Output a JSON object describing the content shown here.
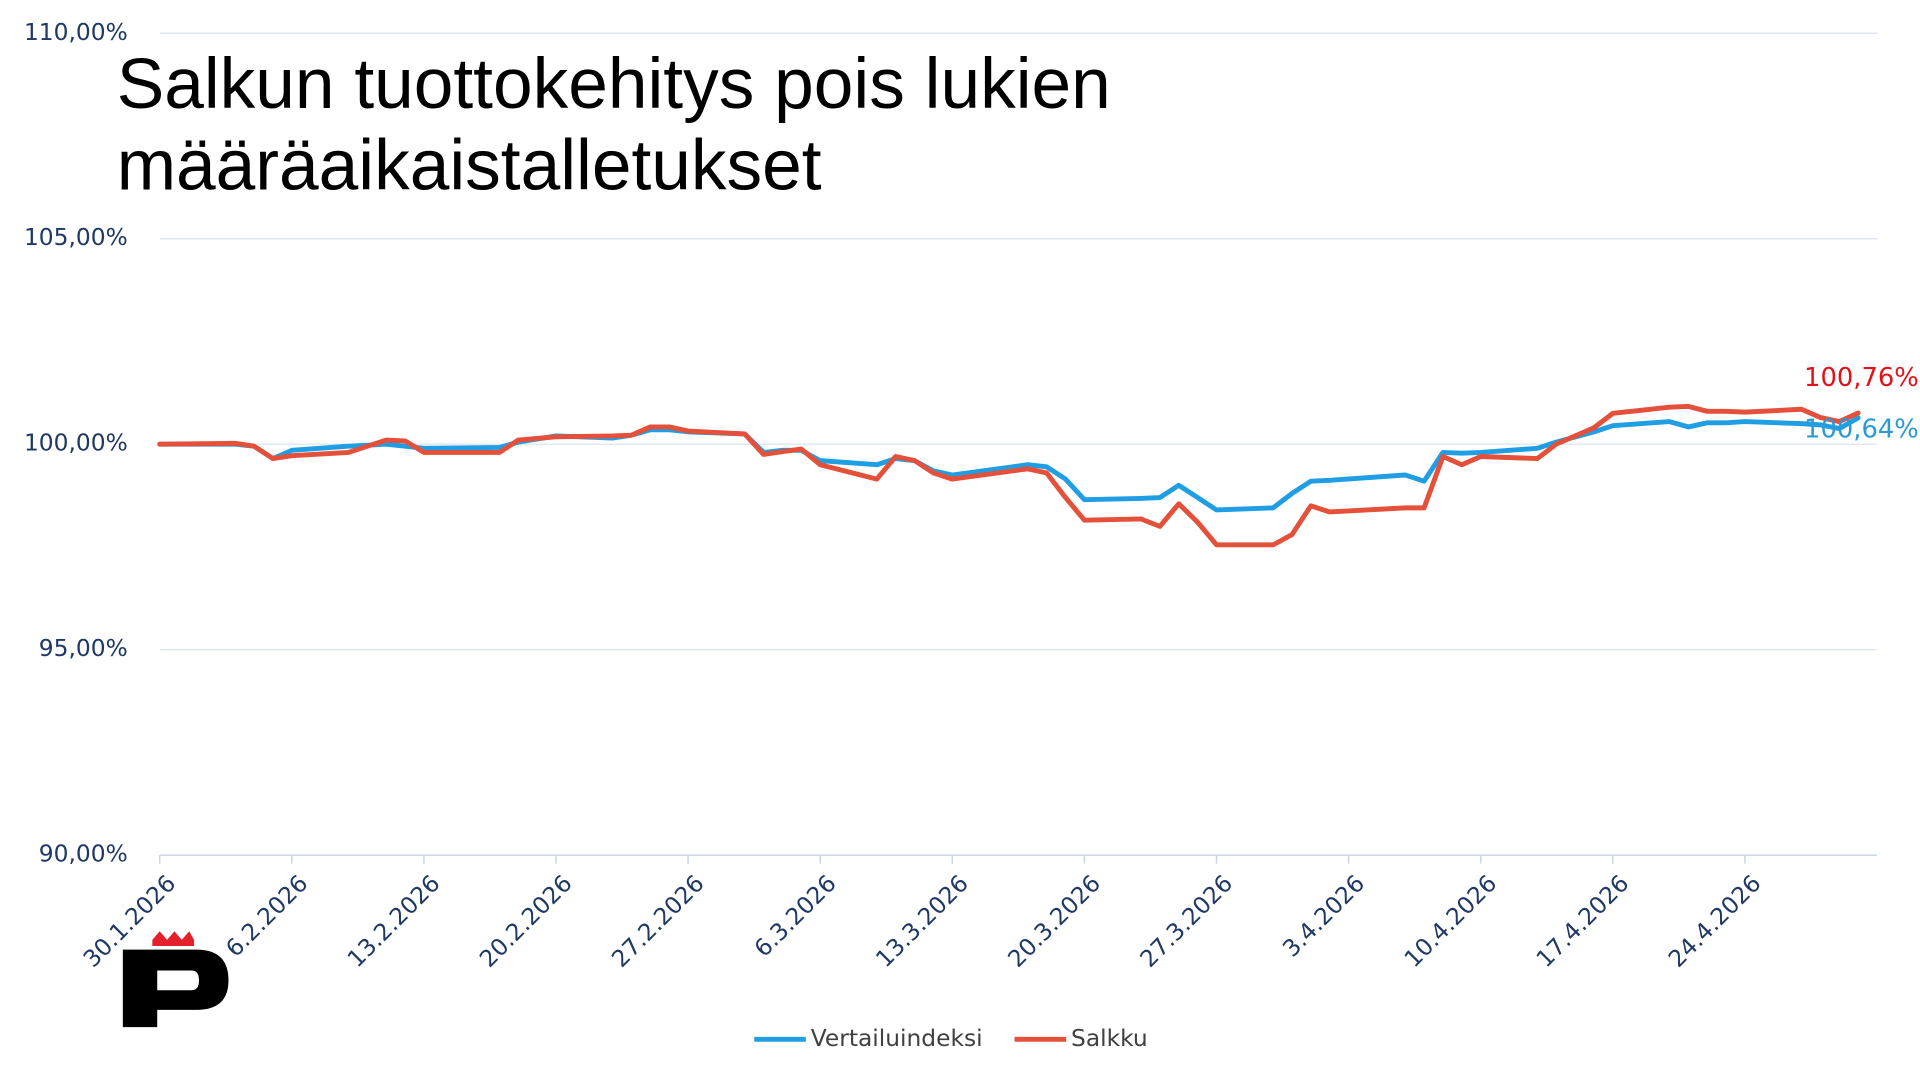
{
  "chart_data": {
    "type": "line",
    "title": "Salkun tuottokehitys pois lukien määräaikaistalletukset",
    "x": [
      "30.1.2026",
      "3.2.2026",
      "4.2.2026",
      "5.2.2026",
      "6.2.2026",
      "9.2.2026",
      "11.2.2026",
      "12.2.2026",
      "13.2.2026",
      "17.2.2026",
      "18.2.2026",
      "20.2.2026",
      "23.2.2026",
      "24.2.2026",
      "25.2.2026",
      "26.2.2026",
      "27.2.2026",
      "2.3.2026",
      "3.3.2026",
      "4.3.2026",
      "5.3.2026",
      "6.3.2026",
      "9.3.2026",
      "10.3.2026",
      "11.3.2026",
      "12.3.2026",
      "13.3.2026",
      "17.3.2026",
      "18.3.2026",
      "19.3.2026",
      "20.3.2026",
      "23.3.2026",
      "24.3.2026",
      "25.3.2026",
      "26.3.2026",
      "27.3.2026",
      "30.3.2026",
      "31.3.2026",
      "1.4.2026",
      "2.4.2026",
      "6.4.2026",
      "7.4.2026",
      "8.4.2026",
      "9.4.2026",
      "10.4.2026",
      "13.4.2026",
      "14.4.2026",
      "16.4.2026",
      "17.4.2026",
      "20.4.2026",
      "21.4.2026",
      "22.4.2026",
      "23.4.2026",
      "24.4.2026",
      "27.4.2026",
      "28.4.2026",
      "29.4.2026",
      "30.4.2026"
    ],
    "series": [
      {
        "name": "Vertailuindeksi",
        "color": "#1f9ee3",
        "values": [
          100.0,
          100.0,
          99.95,
          99.65,
          99.85,
          99.95,
          100.0,
          99.95,
          99.9,
          99.92,
          100.05,
          100.2,
          100.15,
          100.22,
          100.35,
          100.35,
          100.3,
          100.25,
          99.8,
          99.85,
          99.85,
          99.6,
          99.5,
          99.65,
          99.6,
          99.35,
          99.25,
          99.5,
          99.45,
          99.15,
          98.65,
          98.68,
          98.7,
          99.0,
          98.7,
          98.4,
          98.45,
          98.8,
          99.1,
          99.12,
          99.25,
          99.1,
          99.8,
          99.78,
          99.8,
          99.9,
          100.05,
          100.3,
          100.45,
          100.55,
          100.42,
          100.52,
          100.52,
          100.55,
          100.5,
          100.47,
          100.38,
          100.64
        ],
        "value_labels": [
          null,
          null,
          null,
          null,
          null,
          null,
          null,
          null,
          null,
          null,
          null,
          null,
          null,
          null,
          null,
          null,
          null,
          null,
          null,
          null,
          null,
          null,
          null,
          null,
          null,
          null,
          null,
          null,
          null,
          null,
          null,
          null,
          null,
          null,
          null,
          null,
          null,
          null,
          null,
          null,
          null,
          null,
          null,
          null,
          null,
          null,
          null,
          null,
          null,
          null,
          null,
          null,
          null,
          null,
          null,
          null,
          null,
          "100,64%"
        ],
        "label_color": "#2a9bd8"
      },
      {
        "name": "Salkku",
        "color": "#e4503a",
        "values": [
          100.0,
          100.02,
          99.95,
          99.65,
          99.72,
          99.8,
          100.1,
          100.08,
          99.8,
          99.8,
          100.1,
          100.18,
          100.2,
          100.22,
          100.42,
          100.42,
          100.32,
          100.25,
          99.75,
          99.82,
          99.88,
          99.5,
          99.15,
          99.7,
          99.6,
          99.3,
          99.15,
          99.4,
          99.3,
          98.7,
          98.15,
          98.18,
          98.0,
          98.55,
          98.1,
          97.55,
          97.55,
          97.8,
          98.5,
          98.35,
          98.45,
          98.45,
          99.7,
          99.5,
          99.7,
          99.65,
          100.0,
          100.4,
          100.75,
          100.9,
          100.92,
          100.8,
          100.8,
          100.78,
          100.85,
          100.65,
          100.55,
          100.76
        ],
        "value_labels": [
          null,
          null,
          null,
          null,
          null,
          null,
          null,
          null,
          null,
          null,
          null,
          null,
          null,
          null,
          null,
          null,
          null,
          null,
          null,
          null,
          null,
          null,
          null,
          null,
          null,
          null,
          null,
          null,
          null,
          null,
          null,
          null,
          null,
          null,
          null,
          null,
          null,
          null,
          null,
          null,
          null,
          null,
          null,
          null,
          null,
          null,
          null,
          null,
          null,
          null,
          null,
          null,
          null,
          null,
          null,
          null,
          null,
          "100,76%"
        ],
        "label_color": "#e0121b"
      }
    ],
    "xlim": [
      "30.1.2026",
      "1.5.2026"
    ],
    "xticks": [
      "30.1.2026",
      "6.2.2026",
      "13.2.2026",
      "20.2.2026",
      "27.2.2026",
      "6.3.2026",
      "13.3.2026",
      "20.3.2026",
      "27.3.2026",
      "3.4.2026",
      "10.4.2026",
      "17.4.2026",
      "24.4.2026"
    ],
    "ylim": [
      90,
      110
    ],
    "yticks": [
      {
        "value": 90,
        "label": "90,00%"
      },
      {
        "value": 95,
        "label": "95,00%"
      },
      {
        "value": 100,
        "label": "100,00%"
      },
      {
        "value": 105,
        "label": "105,00%"
      },
      {
        "value": 110,
        "label": "110,00%"
      }
    ],
    "grid": true,
    "legend": "bottom"
  }
}
